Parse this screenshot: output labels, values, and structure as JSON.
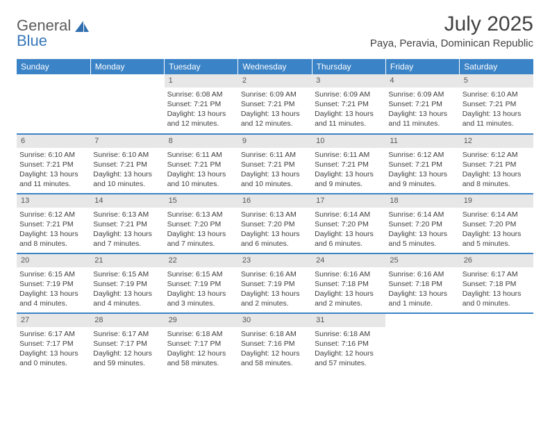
{
  "brand": {
    "line1": "General",
    "line2": "Blue"
  },
  "colors": {
    "header_bg": "#3b83c7",
    "header_text": "#ffffff",
    "daynum_bg": "#e7e7e7",
    "daynum_text": "#555555",
    "cell_border": "#3b83c7",
    "text": "#3d3d3d",
    "logo_gray": "#5a5a5a",
    "logo_blue": "#3778b9"
  },
  "title": "July 2025",
  "location": "Paya, Peravia, Dominican Republic",
  "weekdays": [
    "Sunday",
    "Monday",
    "Tuesday",
    "Wednesday",
    "Thursday",
    "Friday",
    "Saturday"
  ],
  "weeks": [
    [
      null,
      null,
      {
        "n": "1",
        "sr": "6:08 AM",
        "ss": "7:21 PM",
        "dl": "13 hours and 12 minutes."
      },
      {
        "n": "2",
        "sr": "6:09 AM",
        "ss": "7:21 PM",
        "dl": "13 hours and 12 minutes."
      },
      {
        "n": "3",
        "sr": "6:09 AM",
        "ss": "7:21 PM",
        "dl": "13 hours and 11 minutes."
      },
      {
        "n": "4",
        "sr": "6:09 AM",
        "ss": "7:21 PM",
        "dl": "13 hours and 11 minutes."
      },
      {
        "n": "5",
        "sr": "6:10 AM",
        "ss": "7:21 PM",
        "dl": "13 hours and 11 minutes."
      }
    ],
    [
      {
        "n": "6",
        "sr": "6:10 AM",
        "ss": "7:21 PM",
        "dl": "13 hours and 11 minutes."
      },
      {
        "n": "7",
        "sr": "6:10 AM",
        "ss": "7:21 PM",
        "dl": "13 hours and 10 minutes."
      },
      {
        "n": "8",
        "sr": "6:11 AM",
        "ss": "7:21 PM",
        "dl": "13 hours and 10 minutes."
      },
      {
        "n": "9",
        "sr": "6:11 AM",
        "ss": "7:21 PM",
        "dl": "13 hours and 10 minutes."
      },
      {
        "n": "10",
        "sr": "6:11 AM",
        "ss": "7:21 PM",
        "dl": "13 hours and 9 minutes."
      },
      {
        "n": "11",
        "sr": "6:12 AM",
        "ss": "7:21 PM",
        "dl": "13 hours and 9 minutes."
      },
      {
        "n": "12",
        "sr": "6:12 AM",
        "ss": "7:21 PM",
        "dl": "13 hours and 8 minutes."
      }
    ],
    [
      {
        "n": "13",
        "sr": "6:12 AM",
        "ss": "7:21 PM",
        "dl": "13 hours and 8 minutes."
      },
      {
        "n": "14",
        "sr": "6:13 AM",
        "ss": "7:21 PM",
        "dl": "13 hours and 7 minutes."
      },
      {
        "n": "15",
        "sr": "6:13 AM",
        "ss": "7:20 PM",
        "dl": "13 hours and 7 minutes."
      },
      {
        "n": "16",
        "sr": "6:13 AM",
        "ss": "7:20 PM",
        "dl": "13 hours and 6 minutes."
      },
      {
        "n": "17",
        "sr": "6:14 AM",
        "ss": "7:20 PM",
        "dl": "13 hours and 6 minutes."
      },
      {
        "n": "18",
        "sr": "6:14 AM",
        "ss": "7:20 PM",
        "dl": "13 hours and 5 minutes."
      },
      {
        "n": "19",
        "sr": "6:14 AM",
        "ss": "7:20 PM",
        "dl": "13 hours and 5 minutes."
      }
    ],
    [
      {
        "n": "20",
        "sr": "6:15 AM",
        "ss": "7:19 PM",
        "dl": "13 hours and 4 minutes."
      },
      {
        "n": "21",
        "sr": "6:15 AM",
        "ss": "7:19 PM",
        "dl": "13 hours and 4 minutes."
      },
      {
        "n": "22",
        "sr": "6:15 AM",
        "ss": "7:19 PM",
        "dl": "13 hours and 3 minutes."
      },
      {
        "n": "23",
        "sr": "6:16 AM",
        "ss": "7:19 PM",
        "dl": "13 hours and 2 minutes."
      },
      {
        "n": "24",
        "sr": "6:16 AM",
        "ss": "7:18 PM",
        "dl": "13 hours and 2 minutes."
      },
      {
        "n": "25",
        "sr": "6:16 AM",
        "ss": "7:18 PM",
        "dl": "13 hours and 1 minute."
      },
      {
        "n": "26",
        "sr": "6:17 AM",
        "ss": "7:18 PM",
        "dl": "13 hours and 0 minutes."
      }
    ],
    [
      {
        "n": "27",
        "sr": "6:17 AM",
        "ss": "7:17 PM",
        "dl": "13 hours and 0 minutes."
      },
      {
        "n": "28",
        "sr": "6:17 AM",
        "ss": "7:17 PM",
        "dl": "12 hours and 59 minutes."
      },
      {
        "n": "29",
        "sr": "6:18 AM",
        "ss": "7:17 PM",
        "dl": "12 hours and 58 minutes."
      },
      {
        "n": "30",
        "sr": "6:18 AM",
        "ss": "7:16 PM",
        "dl": "12 hours and 58 minutes."
      },
      {
        "n": "31",
        "sr": "6:18 AM",
        "ss": "7:16 PM",
        "dl": "12 hours and 57 minutes."
      },
      null,
      null
    ]
  ],
  "labels": {
    "sunrise": "Sunrise:",
    "sunset": "Sunset:",
    "daylight": "Daylight:"
  }
}
